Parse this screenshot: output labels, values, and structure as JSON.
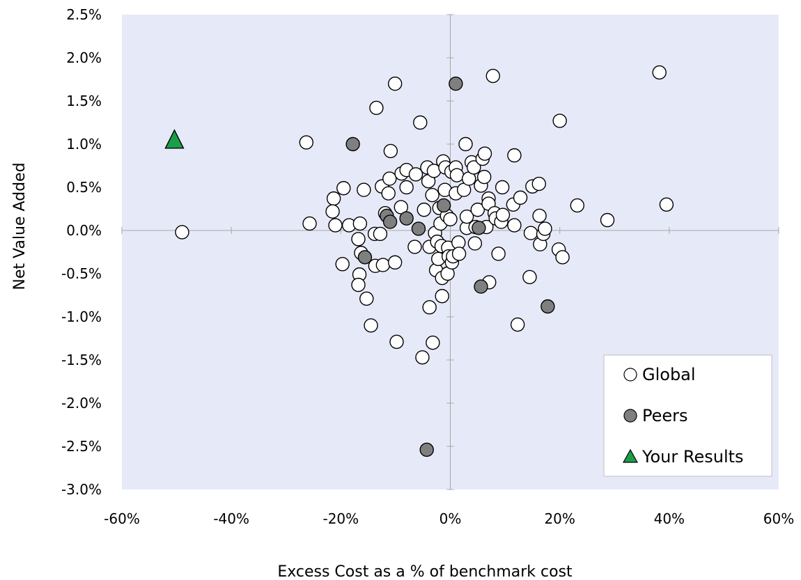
{
  "chart_data": {
    "type": "scatter",
    "xlabel": "Excess Cost as a % of benchmark cost",
    "ylabel": "Net Value Added",
    "xlim": [
      -60,
      60
    ],
    "ylim": [
      -3.0,
      2.5
    ],
    "x_ticks": [
      -60,
      -40,
      -20,
      0,
      20,
      40,
      60
    ],
    "x_tick_labels": [
      "-60%",
      "-40%",
      "-20%",
      "0%",
      "20%",
      "40%",
      "60%"
    ],
    "y_ticks": [
      2.5,
      2.0,
      1.5,
      1.0,
      0.5,
      0.0,
      -0.5,
      -1.0,
      -1.5,
      -2.0,
      -2.5,
      -3.0
    ],
    "y_tick_labels": [
      "2.5%",
      "2.0%",
      "1.5%",
      "1.0%",
      "0.5%",
      "0.0%",
      "-0.5%",
      "-1.0%",
      "-1.5%",
      "-2.0%",
      "-2.5%",
      "-3.0%"
    ],
    "plot_background": "#e6e9f8",
    "grid": false,
    "legend_position": "bottom-right",
    "series": [
      {
        "name": "Global",
        "marker": "circle",
        "color": "#ffffff",
        "points": [
          [
            -49,
            -0.02
          ],
          [
            -26.3,
            1.02
          ],
          [
            -25.7,
            0.08
          ],
          [
            -21.3,
            0.37
          ],
          [
            -21.5,
            0.22
          ],
          [
            -21.0,
            0.06
          ],
          [
            -19.5,
            0.49
          ],
          [
            -19.7,
            -0.39
          ],
          [
            -18.5,
            0.06
          ],
          [
            -16.5,
            0.08
          ],
          [
            -16.8,
            -0.1
          ],
          [
            -16.3,
            -0.26
          ],
          [
            -16.6,
            -0.51
          ],
          [
            -16.8,
            -0.63
          ],
          [
            -15.8,
            0.47
          ],
          [
            -15.3,
            -0.79
          ],
          [
            -14.5,
            -1.1
          ],
          [
            -13.8,
            -0.04
          ],
          [
            -13.7,
            -0.41
          ],
          [
            -13.5,
            1.42
          ],
          [
            -12.8,
            -0.04
          ],
          [
            -12.5,
            0.51
          ],
          [
            -12.3,
            -0.4
          ],
          [
            -11.9,
            0.2
          ],
          [
            -11.3,
            0.43
          ],
          [
            -11.1,
            0.6
          ],
          [
            -10.9,
            0.92
          ],
          [
            -10.1,
            1.7
          ],
          [
            -10.1,
            -0.37
          ],
          [
            -9.8,
            -1.29
          ],
          [
            -9.0,
            0.27
          ],
          [
            -8.9,
            0.66
          ],
          [
            -8.0,
            0.7
          ],
          [
            -8.0,
            0.5
          ],
          [
            -6.3,
            0.65
          ],
          [
            -6.5,
            -0.19
          ],
          [
            -5.5,
            1.25
          ],
          [
            -5.1,
            -1.47
          ],
          [
            -4.8,
            0.24
          ],
          [
            -4.2,
            0.73
          ],
          [
            -4.0,
            0.57
          ],
          [
            -3.8,
            -0.19
          ],
          [
            -3.8,
            -0.89
          ],
          [
            -3.3,
            0.41
          ],
          [
            -3.0,
            0.69
          ],
          [
            -3.2,
            -1.3
          ],
          [
            -2.8,
            -0.03
          ],
          [
            -2.6,
            -0.46
          ],
          [
            -2.4,
            -0.13
          ],
          [
            -2.2,
            -0.33
          ],
          [
            -2.0,
            0.26
          ],
          [
            -1.8,
            0.08
          ],
          [
            -1.6,
            -0.18
          ],
          [
            -1.5,
            -0.55
          ],
          [
            -1.5,
            -0.76
          ],
          [
            -1.3,
            0.8
          ],
          [
            -1.0,
            0.47
          ],
          [
            -0.9,
            0.73
          ],
          [
            -0.6,
            0.17
          ],
          [
            -0.5,
            -0.5
          ],
          [
            -0.4,
            -0.2
          ],
          [
            -0.3,
            -0.3
          ],
          [
            0.0,
            0.13
          ],
          [
            0.2,
            0.68
          ],
          [
            0.3,
            -0.37
          ],
          [
            0.5,
            -0.3
          ],
          [
            1.0,
            0.73
          ],
          [
            1.0,
            0.43
          ],
          [
            1.2,
            0.64
          ],
          [
            1.5,
            -0.14
          ],
          [
            1.6,
            -0.27
          ],
          [
            2.5,
            0.47
          ],
          [
            2.8,
            1.0
          ],
          [
            3.0,
            0.03
          ],
          [
            3.0,
            0.16
          ],
          [
            3.4,
            0.6
          ],
          [
            3.9,
            0.79
          ],
          [
            4.3,
            0.73
          ],
          [
            4.5,
            -0.15
          ],
          [
            4.6,
            0.04
          ],
          [
            5.0,
            0.24
          ],
          [
            5.6,
            0.52
          ],
          [
            5.9,
            0.83
          ],
          [
            6.2,
            0.62
          ],
          [
            6.3,
            0.89
          ],
          [
            6.6,
            0.04
          ],
          [
            7.0,
            0.37
          ],
          [
            7.0,
            0.31
          ],
          [
            7.1,
            -0.6
          ],
          [
            7.8,
            1.79
          ],
          [
            8.1,
            0.2
          ],
          [
            8.3,
            0.14
          ],
          [
            8.8,
            -0.27
          ],
          [
            9.3,
            0.1
          ],
          [
            9.5,
            0.5
          ],
          [
            9.6,
            0.18
          ],
          [
            11.5,
            0.3
          ],
          [
            11.7,
            0.87
          ],
          [
            11.7,
            0.06
          ],
          [
            12.3,
            -1.09
          ],
          [
            12.8,
            0.38
          ],
          [
            14.5,
            -0.54
          ],
          [
            14.7,
            -0.03
          ],
          [
            15.0,
            0.51
          ],
          [
            16.2,
            0.54
          ],
          [
            16.3,
            0.17
          ],
          [
            16.4,
            -0.16
          ],
          [
            17.0,
            -0.04
          ],
          [
            17.3,
            0.02
          ],
          [
            19.8,
            -0.22
          ],
          [
            20.0,
            1.27
          ],
          [
            20.5,
            -0.31
          ],
          [
            23.2,
            0.29
          ],
          [
            28.7,
            0.12
          ],
          [
            38.2,
            1.83
          ],
          [
            39.5,
            0.3
          ]
        ]
      },
      {
        "name": "Peers",
        "marker": "circle",
        "color": "#7f7f7f",
        "points": [
          [
            -17.8,
            1.0
          ],
          [
            -15.6,
            -0.31
          ],
          [
            -11.6,
            0.17
          ],
          [
            -11.0,
            0.1
          ],
          [
            -8.0,
            0.14
          ],
          [
            -5.8,
            0.02
          ],
          [
            -1.2,
            0.29
          ],
          [
            1.0,
            1.7
          ],
          [
            5.2,
            0.03
          ],
          [
            5.6,
            -0.65
          ],
          [
            -4.3,
            -2.54
          ],
          [
            17.8,
            -0.88
          ]
        ]
      },
      {
        "name": "Your Results",
        "marker": "triangle",
        "color": "#1a9e4a",
        "points": [
          [
            -50.4,
            1.05
          ]
        ]
      }
    ]
  }
}
